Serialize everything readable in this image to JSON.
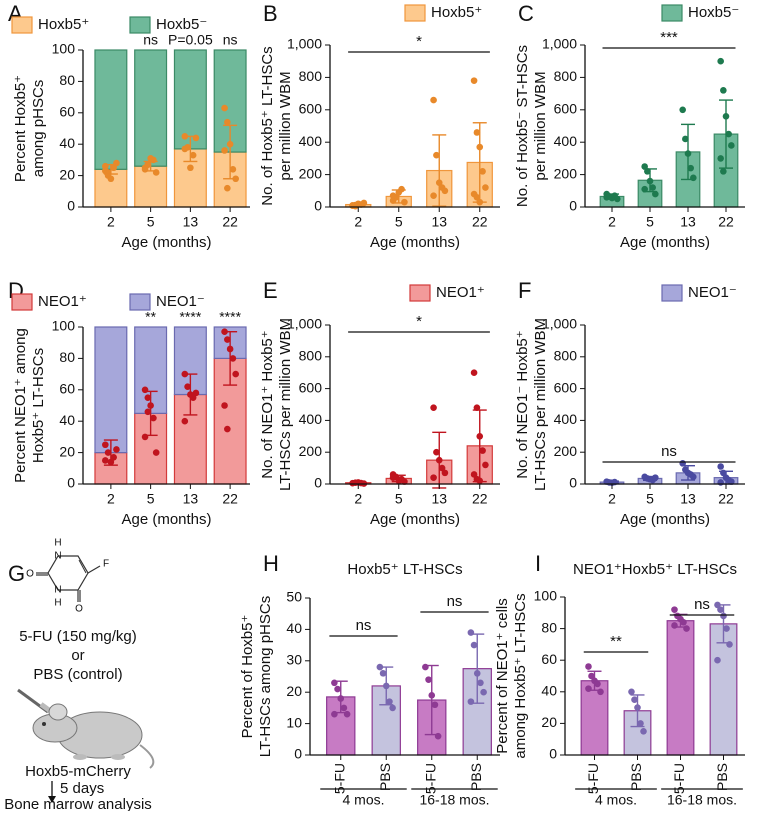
{
  "chart_data": [
    {
      "letter": "A",
      "type": "stacked_bar",
      "ylabel": [
        "Percent Hoxb5⁺",
        "among pHSCs"
      ],
      "xlabel": "Age (months)",
      "categories": [
        "2",
        "5",
        "13",
        "22"
      ],
      "ylim": [
        0,
        100
      ],
      "yticks": [
        0,
        20,
        40,
        60,
        80,
        100
      ],
      "series": [
        {
          "name": "Hoxb5⁺",
          "color": "#fdc98d",
          "edge": "#f0963c",
          "point_color": "#e8892a",
          "values": [
            24,
            26,
            37,
            35
          ],
          "errors": [
            3,
            3,
            8,
            17
          ],
          "points": [
            [
              26,
              22,
              18,
              25,
              28,
              23,
              20
            ],
            [
              25,
              27,
              31,
              30,
              22,
              24,
              27
            ],
            [
              45,
              38,
              25,
              33,
              44,
              37
            ],
            [
              63,
              54,
              40,
              24,
              18,
              36,
              12
            ]
          ]
        },
        {
          "name": "Hoxb5⁻",
          "color": "#6fb99a",
          "edge": "#3b8a66",
          "values": [
            76,
            74,
            63,
            65
          ]
        }
      ],
      "stats": [
        null,
        "ns",
        "P=0.05",
        "ns"
      ]
    },
    {
      "letter": "B",
      "type": "bar",
      "ylabel": [
        "No. of Hoxb5⁺ LT-HSCs",
        "per million WBM"
      ],
      "xlabel": "Age (months)",
      "categories": [
        "2",
        "5",
        "13",
        "22"
      ],
      "ylim": [
        0,
        1000
      ],
      "yticks": [
        0,
        200,
        400,
        600,
        800,
        {
          "value": 1000,
          "label": "1,000"
        }
      ],
      "series": [
        {
          "name": "Hoxb5⁺",
          "color": "#fdc98d",
          "edge": "#f0963c",
          "point_color": "#e8892a",
          "values": [
            15,
            65,
            225,
            275
          ],
          "errors": [
            10,
            40,
            220,
            245
          ],
          "points": [
            [
              10,
              5,
              20,
              15,
              25,
              8,
              12
            ],
            [
              40,
              60,
              90,
              110,
              30,
              70
            ],
            [
              660,
              320,
              150,
              120,
              100,
              70
            ],
            [
              780,
              460,
              370,
              220,
              120,
              80,
              60,
              30
            ]
          ]
        }
      ],
      "brackets": [
        {
          "from": 0,
          "to": 3,
          "label": "*"
        }
      ]
    },
    {
      "letter": "C",
      "type": "bar",
      "ylabel": [
        "No. of Hoxb5⁻ ST-HSCs",
        "per million WBM"
      ],
      "xlabel": "Age (months)",
      "categories": [
        "2",
        "5",
        "13",
        "22"
      ],
      "ylim": [
        0,
        1000
      ],
      "yticks": [
        0,
        200,
        400,
        600,
        800,
        {
          "value": 1000,
          "label": "1,000"
        }
      ],
      "series": [
        {
          "name": "Hoxb5⁻",
          "color": "#6fb99a",
          "edge": "#3b8a66",
          "point_color": "#1e7a4f",
          "values": [
            65,
            165,
            340,
            450
          ],
          "errors": [
            15,
            70,
            170,
            210
          ],
          "points": [
            [
              80,
              65,
              55,
              70,
              50,
              60
            ],
            [
              250,
              220,
              160,
              120,
              80,
              110
            ],
            [
              600,
              420,
              330,
              240,
              180
            ],
            [
              900,
              720,
              560,
              450,
              380,
              300,
              220
            ]
          ]
        }
      ],
      "brackets": [
        {
          "from": 0,
          "to": 3,
          "label": "***"
        }
      ]
    },
    {
      "letter": "D",
      "type": "stacked_bar",
      "ylabel": [
        "Percent NEO1⁺ among",
        "Hoxb5⁺ LT-HSCs"
      ],
      "xlabel": "Age (months)",
      "categories": [
        "2",
        "5",
        "13",
        "22"
      ],
      "ylim": [
        0,
        100
      ],
      "yticks": [
        0,
        20,
        40,
        60,
        80,
        100
      ],
      "series": [
        {
          "name": "NEO1⁺",
          "color": "#f29a9a",
          "edge": "#d33a3a",
          "point_color": "#c0141e",
          "values": [
            20,
            45,
            57,
            80
          ],
          "errors": [
            8,
            14,
            13,
            17
          ],
          "points": [
            [
              25,
              20,
              14,
              17,
              22,
              15
            ],
            [
              60,
              55,
              50,
              42,
              20,
              30,
              46
            ],
            [
              70,
              62,
              57,
              55,
              58,
              40
            ],
            [
              97,
              92,
              86,
              80,
              70,
              50,
              35
            ]
          ]
        },
        {
          "name": "NEO1⁻",
          "color": "#a6a7da",
          "edge": "#6a6ab0",
          "values": [
            80,
            55,
            43,
            20
          ]
        }
      ],
      "stats": [
        null,
        "**",
        "****",
        "****"
      ]
    },
    {
      "letter": "E",
      "type": "bar",
      "ylabel": [
        "No. of NEO1⁺ Hoxb5⁺",
        "LT-HSCs per million WBM"
      ],
      "xlabel": "Age (months)",
      "categories": [
        "2",
        "5",
        "13",
        "22"
      ],
      "ylim": [
        0,
        1000
      ],
      "yticks": [
        0,
        200,
        400,
        600,
        800,
        {
          "value": 1000,
          "label": "1,000"
        }
      ],
      "series": [
        {
          "name": "NEO1⁺",
          "color": "#f29a9a",
          "edge": "#d33a3a",
          "point_color": "#c0141e",
          "values": [
            8,
            35,
            150,
            240
          ],
          "errors": [
            5,
            20,
            175,
            225
          ],
          "points": [
            [
              5,
              8,
              10,
              6,
              3
            ],
            [
              60,
              45,
              20,
              30,
              15,
              40
            ],
            [
              480,
              200,
              150,
              100,
              70,
              40
            ],
            [
              700,
              480,
              300,
              210,
              120,
              60,
              30,
              20
            ]
          ]
        }
      ],
      "brackets": [
        {
          "from": 0,
          "to": 3,
          "label": "*"
        }
      ]
    },
    {
      "letter": "F",
      "type": "bar",
      "ylabel": [
        "No. of NEO1⁻ Hoxb5⁺",
        "LT-HSCs per million WBM"
      ],
      "xlabel": "Age (months)",
      "categories": [
        "2",
        "5",
        "13",
        "22"
      ],
      "ylim": [
        0,
        1000
      ],
      "yticks": [
        0,
        200,
        400,
        600,
        800,
        {
          "value": 1000,
          "label": "1,000"
        }
      ],
      "series": [
        {
          "name": "NEO1⁻",
          "color": "#a6a7da",
          "edge": "#6a6ab0",
          "point_color": "#4a4aa0",
          "values": [
            12,
            35,
            70,
            40
          ],
          "errors": [
            6,
            12,
            45,
            40
          ],
          "points": [
            [
              15,
              10,
              8,
              12
            ],
            [
              45,
              35,
              30,
              25,
              40
            ],
            [
              130,
              90,
              70,
              60,
              45
            ],
            [
              110,
              70,
              40,
              25,
              15,
              10
            ]
          ]
        }
      ],
      "brackets": [
        {
          "from": 0,
          "to": 3,
          "label": "ns"
        }
      ]
    },
    {
      "letter": "H",
      "type": "bar",
      "title": "Hoxb5⁺ LT-HSCs",
      "ylabel": [
        "Percent of Hoxb5⁺",
        "LT-HSCs among pHSCs"
      ],
      "categories": [
        "5-FU",
        "PBS",
        "5-FU",
        "PBS"
      ],
      "groups": [
        "4 mos.",
        "16-18 mos."
      ],
      "ylim": [
        0,
        50
      ],
      "yticks": [
        0,
        10,
        20,
        30,
        40,
        50
      ],
      "series": [
        {
          "colors": [
            "#c77bc4",
            "#c4c3de",
            "#c77bc4",
            "#c4c3de"
          ],
          "edge": "#8e3a93",
          "point_colors": [
            "#8e3a93",
            "#7a68b0",
            "#8e3a93",
            "#7a68b0"
          ],
          "values": [
            18.5,
            22,
            17.5,
            27.5
          ],
          "errors": [
            5,
            6,
            11,
            11
          ],
          "points": [
            [
              23,
              21,
              18,
              15,
              13,
              13
            ],
            [
              28,
              26,
              22,
              17,
              15
            ],
            [
              28,
              24,
              19,
              16,
              6
            ],
            [
              39,
              35,
              26,
              23,
              20,
              17
            ]
          ]
        }
      ],
      "brackets": [
        {
          "from": 0,
          "to": 1,
          "label": "ns"
        },
        {
          "from": 2,
          "to": 3,
          "label": "ns"
        }
      ]
    },
    {
      "letter": "I",
      "type": "bar",
      "title": "NEO1⁺Hoxb5⁺ LT-HSCs",
      "ylabel": [
        "Percent of NEO1⁺ cells",
        "among Hoxb5⁺ LT-HSCs"
      ],
      "categories": [
        "5-FU",
        "PBS",
        "5-FU",
        "PBS"
      ],
      "groups": [
        "4 mos.",
        "16-18 mos."
      ],
      "ylim": [
        0,
        100
      ],
      "yticks": [
        0,
        20,
        40,
        60,
        80,
        100
      ],
      "series": [
        {
          "colors": [
            "#c77bc4",
            "#c4c3de",
            "#c77bc4",
            "#c4c3de"
          ],
          "edge": "#8e3a93",
          "point_colors": [
            "#8e3a93",
            "#7a68b0",
            "#8e3a93",
            "#7a68b0"
          ],
          "values": [
            47,
            28,
            85,
            83
          ],
          "errors": [
            6,
            10,
            4,
            12
          ],
          "points": [
            [
              56,
              50,
              47,
              45,
              40,
              42
            ],
            [
              40,
              35,
              30,
              20,
              15
            ],
            [
              92,
              88,
              86,
              84,
              80,
              82
            ],
            [
              95,
              92,
              88,
              80,
              70,
              60
            ]
          ]
        }
      ],
      "brackets": [
        {
          "from": 0,
          "to": 1,
          "label": "**"
        },
        {
          "from": 2,
          "to": 3,
          "label": "ns"
        }
      ]
    }
  ],
  "diagram": {
    "letter": "G",
    "atoms": [
      "H",
      "N",
      "O",
      "N",
      "H",
      "O",
      "F"
    ],
    "lines": [
      "5-FU (150 mg/kg)",
      "or",
      "PBS (control)"
    ],
    "strain": "Hoxb5-mCherry",
    "duration": "5 days",
    "readout": "Bone marrow analysis"
  }
}
